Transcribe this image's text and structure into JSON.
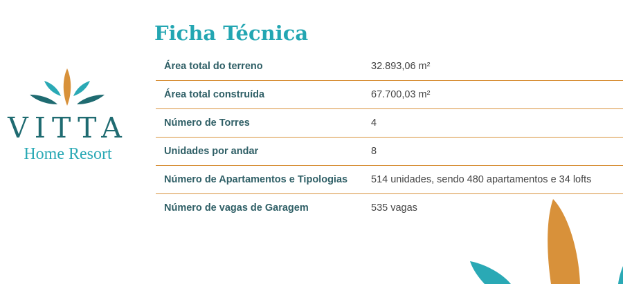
{
  "logo": {
    "brand": "VITTA",
    "tagline": "Home Resort"
  },
  "title": "Ficha Técnica",
  "rows": [
    {
      "label": "Área total do terreno",
      "value": "32.893,06 m²"
    },
    {
      "label": "Área total construída",
      "value": "67.700,03 m²"
    },
    {
      "label": "Número de Torres",
      "value": "4"
    },
    {
      "label": "Unidades por andar",
      "value": "8"
    },
    {
      "label": "Número de Apartamentos e Tipologias",
      "value": "514 unidades, sendo 480 apartamentos e 34 lofts"
    },
    {
      "label": "Número de vagas de Garagem",
      "value": "535 vagas"
    }
  ],
  "colors": {
    "teal_dark": "#1f6b71",
    "teal_light": "#2aa9b5",
    "orange": "#d8913a",
    "line": "#d8913a"
  }
}
